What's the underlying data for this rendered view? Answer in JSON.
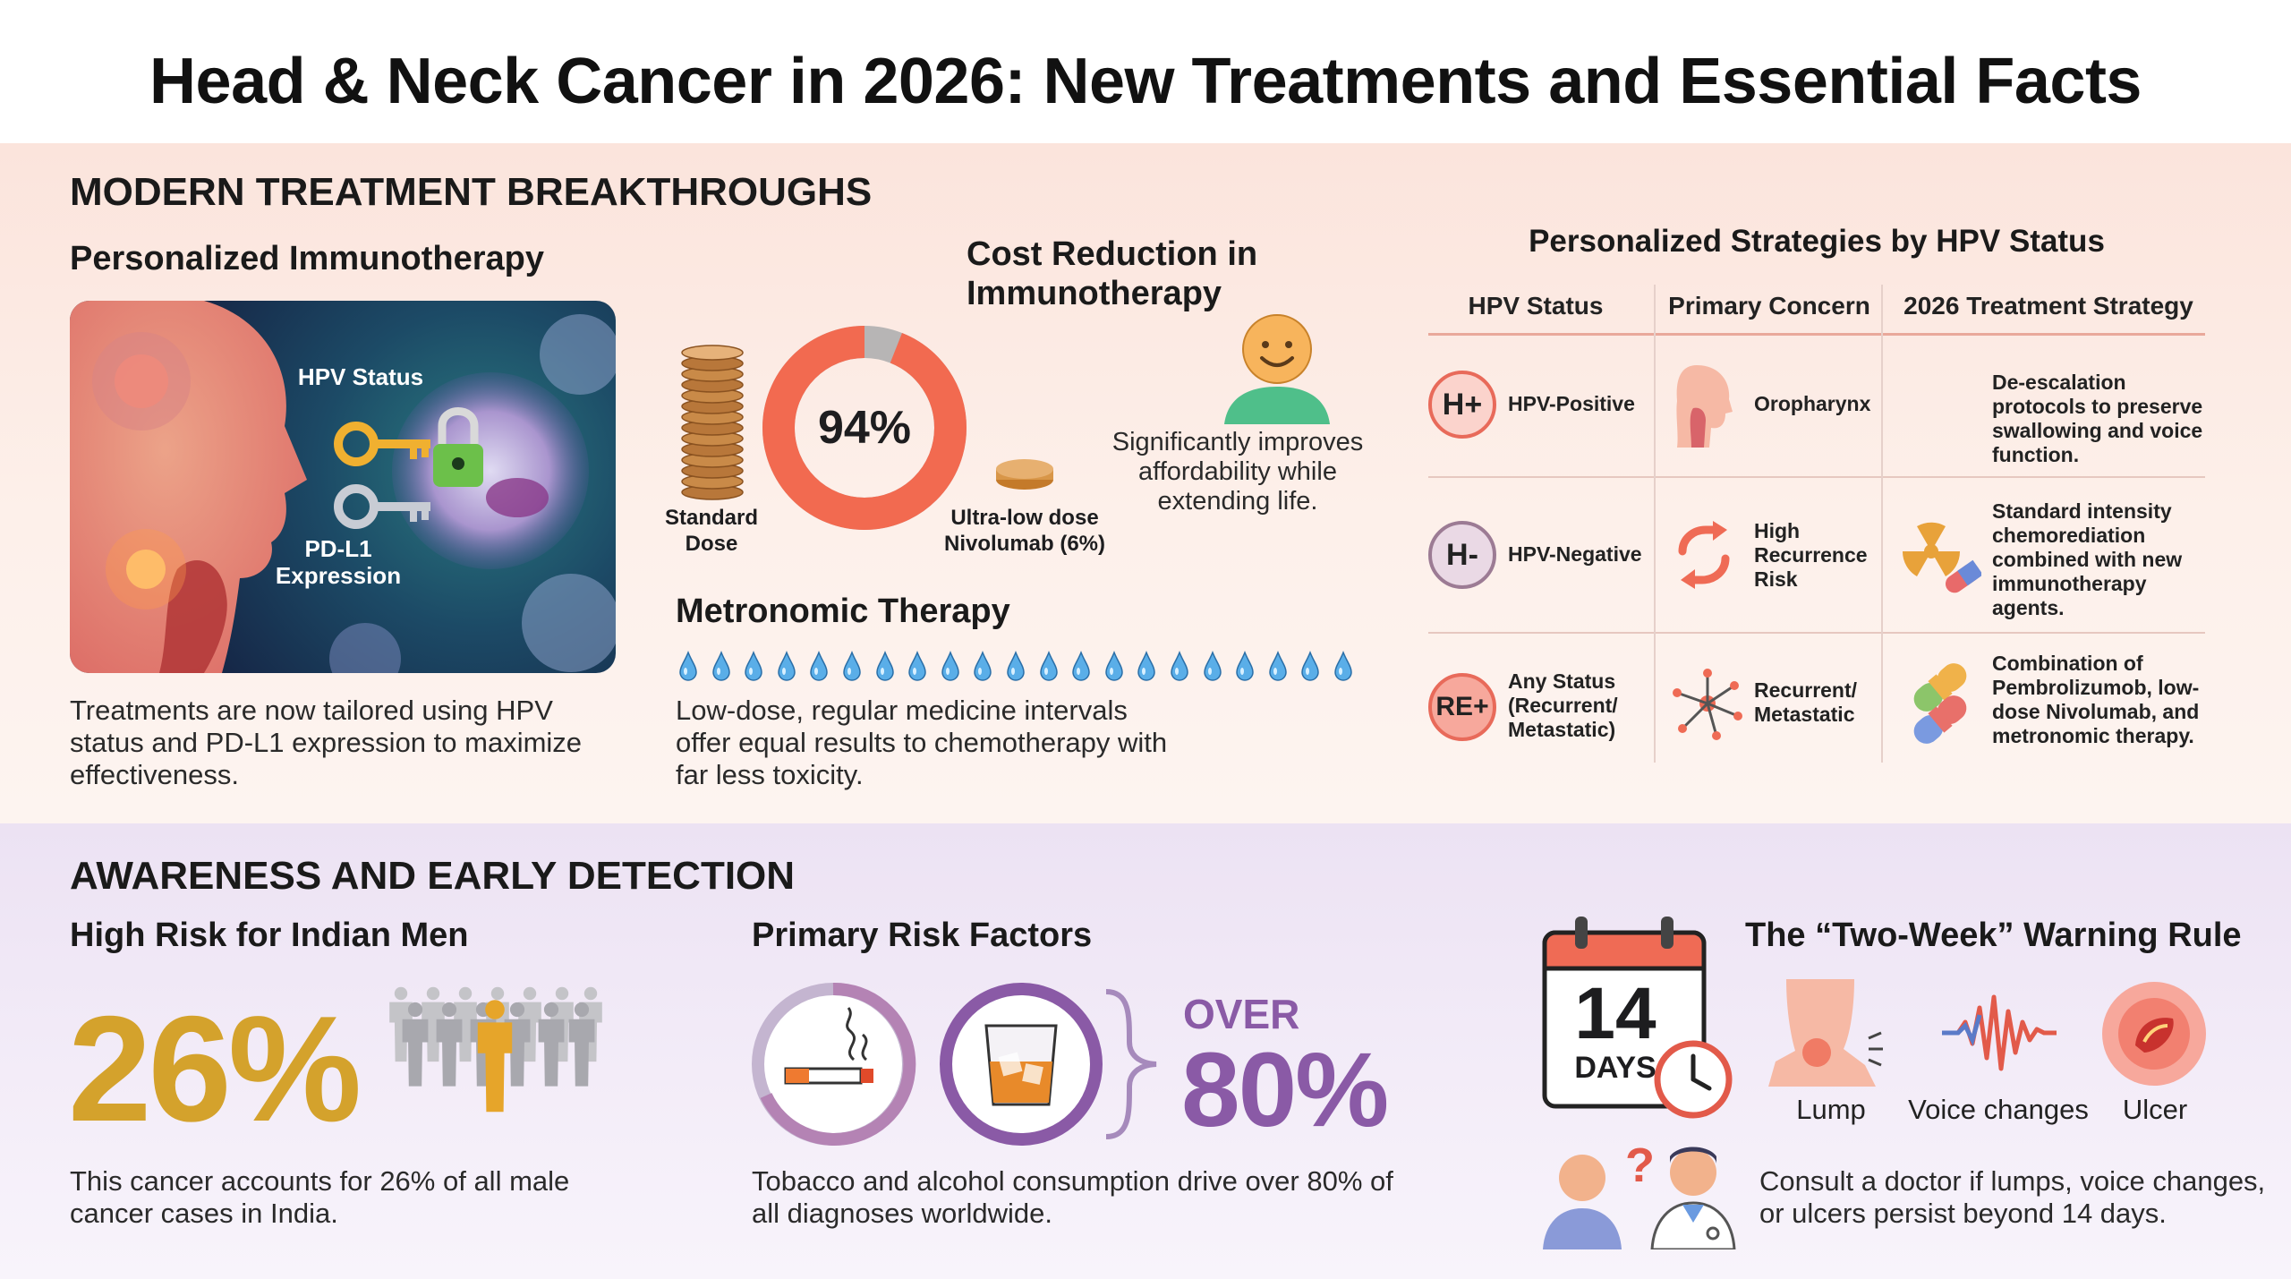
{
  "title": "Head & Neck Cancer in 2026: New Treatments and Essential Facts",
  "treatment": {
    "heading": "MODERN TREATMENT BREAKTHROUGHS",
    "immunotherapy": {
      "title": "Personalized Immunotherapy",
      "hpv_label": "HPV Status",
      "pdl1_label": "PD-L1 Expression",
      "description": "Treatments are now tailored using HPV status and PD-L1 expression to maximize effectiveness."
    },
    "cost": {
      "title": "Cost Reduction in Immunotherapy",
      "percent": "94%",
      "reduction_fraction": 0.94,
      "standard_label": "Standard Dose",
      "ultralow_label": "Ultra-low dose Nivolumab (6%)",
      "benefit": "Significantly improves affordability while extending life."
    },
    "metronomic": {
      "title": "Metronomic Therapy",
      "drop_count": 21,
      "description": "Low-dose, regular medicine intervals offer equal results to chemotherapy with far less toxicity."
    },
    "strategies": {
      "title": "Personalized Strategies by HPV Status",
      "headers": [
        "HPV Status",
        "Primary Concern",
        "2026 Treatment Strategy"
      ],
      "rows": [
        {
          "badge": "H+",
          "status": "HPV-Positive",
          "concern": "Oropharynx",
          "strategy": "De-escalation protocols to preserve swallowing and voice function."
        },
        {
          "badge": "H-",
          "status": "HPV-Negative",
          "concern": "High Recurrence Risk",
          "strategy": "Standard intensity chemorediation combined with new immunotherapy agents."
        },
        {
          "badge": "RE+",
          "status": "Any Status (Recurrent/ Metastatic)",
          "concern": "Recurrent/ Metastatic",
          "strategy": "Combination of Pembrolizumob, low-dose Nivolumab, and metronomic therapy."
        }
      ],
      "colors": {
        "badge_red": "#e86a5a",
        "badge_mauve": "#9c7b94"
      }
    }
  },
  "awareness": {
    "heading": "AWARENESS AND EARLY DETECTION",
    "indian_men": {
      "title": "High Risk for Indian Men",
      "percent": "26%",
      "description": "This cancer accounts for 26% of all male cancer cases in India."
    },
    "risk_factors": {
      "title": "Primary Risk Factors",
      "over_label": "OVER",
      "percent": "80%",
      "description": "Tobacco and alcohol consumption drive over 80% of all diagnoses worldwide."
    },
    "two_week": {
      "title": "The “Two-Week” Warning Rule",
      "calendar_number": "14",
      "calendar_unit": "DAYS",
      "symptoms": [
        "Lump",
        "Voice changes",
        "Ulcer"
      ],
      "advice": "Consult a doctor if lumps, voice changes, or ulcers persist beyond 14 days."
    }
  },
  "colors": {
    "accent_red": "#ef6b55",
    "gold": "#d4a22c",
    "purple": "#8a5aa6"
  }
}
